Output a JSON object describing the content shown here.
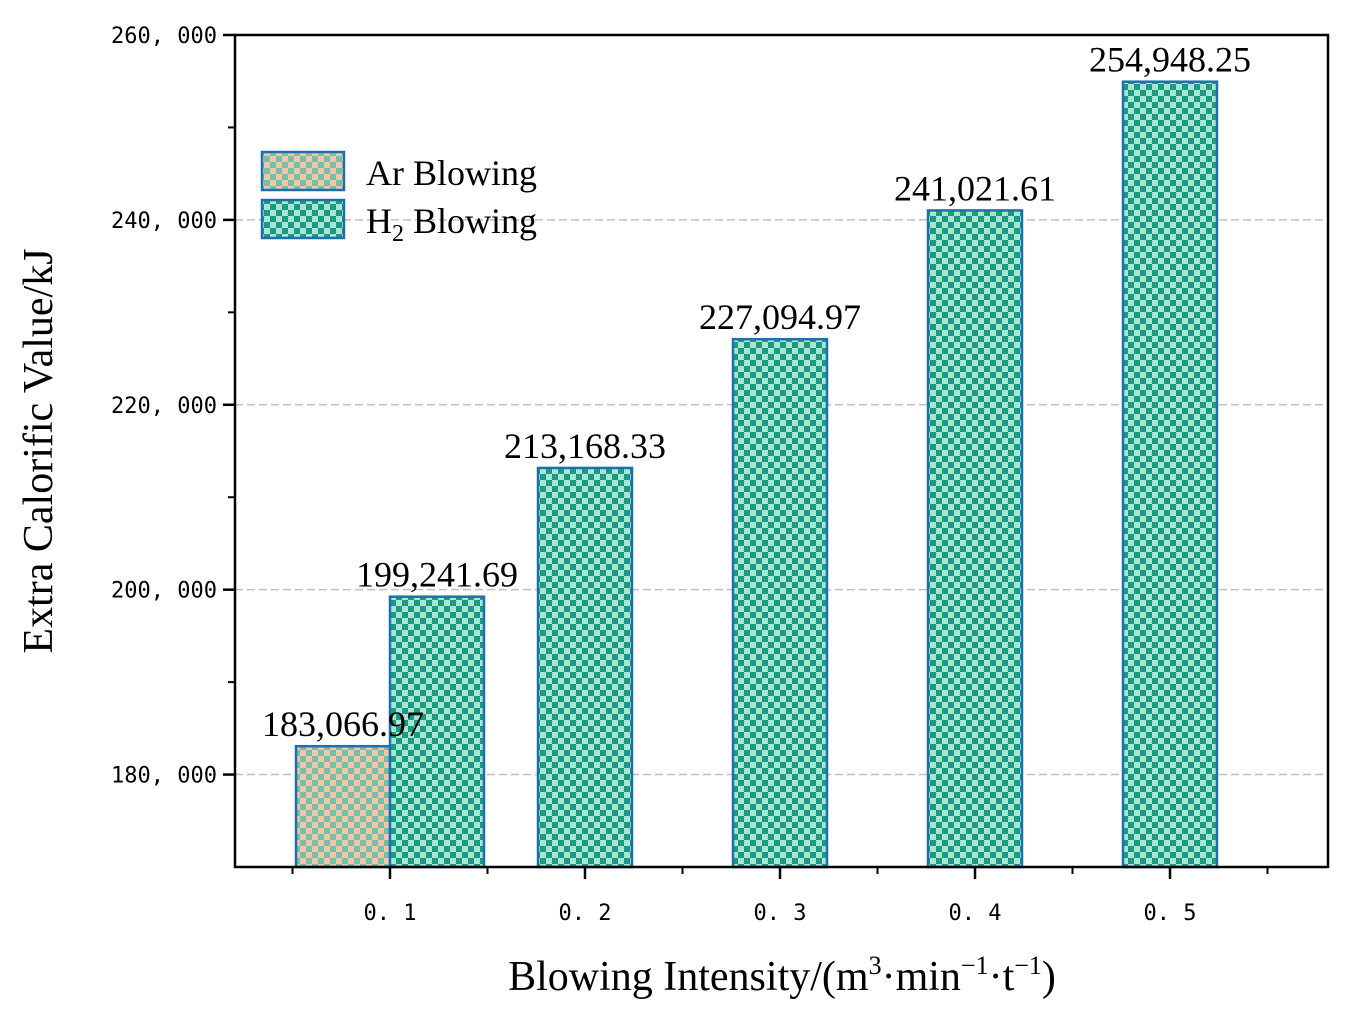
{
  "chart_data": {
    "type": "bar",
    "categories": [
      "0. 1",
      "0. 2",
      "0. 3",
      "0. 4",
      "0. 5"
    ],
    "series": [
      {
        "name": "Ar Blowing",
        "values": [
          183066.97,
          null,
          null,
          null,
          null
        ],
        "labels": [
          "183,066.97",
          "",
          "",
          "",
          ""
        ],
        "color": "#f3c7a6",
        "pattern_color": "#73bfa9",
        "edge_color": "#1f6fae"
      },
      {
        "name": "H2 Blowing",
        "values": [
          199241.69,
          213168.33,
          227094.97,
          241021.61,
          254948.25
        ],
        "labels": [
          "199,241.69",
          "213,168.33",
          "227,094.97",
          "241,021.61",
          "254,948.25"
        ],
        "color": "#1a9a86",
        "pattern_color": "#a8e6ce",
        "edge_color": "#1f6fae"
      }
    ],
    "ylim": [
      170000,
      260000
    ],
    "yticks": [
      180000,
      200000,
      220000,
      240000,
      260000
    ],
    "ytick_labels": [
      "180, 000",
      "200, 000",
      "220, 000",
      "240, 000",
      "260, 000"
    ],
    "ylabel": "Extra Calorific Value/kJ",
    "xlabel": {
      "prefix": "Blowing Intensity/(m",
      "sup1": "3",
      "mid1": "·min",
      "sup2": "−1",
      "mid2": "·t",
      "sup3": "−1",
      "suffix": ")"
    },
    "legend": {
      "position": "upper-left",
      "entries": [
        {
          "text": "Ar Blowing"
        },
        {
          "text": "H",
          "sub": "2",
          "text_after": " Blowing"
        }
      ]
    },
    "grid": "horizontal-dashed",
    "grid_color": "#c0c0c0"
  }
}
